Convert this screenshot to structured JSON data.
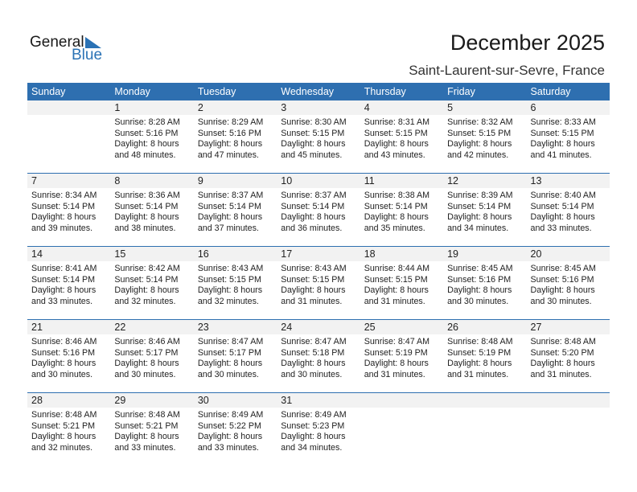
{
  "logo": {
    "text1": "General",
    "text2": "Blue"
  },
  "title": "December 2025",
  "location": "Saint-Laurent-sur-Sevre, France",
  "colors": {
    "header": "#2e6fb0",
    "band": "#f2f2f2",
    "logo_blue": "#2a72b5"
  },
  "weekdays": [
    "Sunday",
    "Monday",
    "Tuesday",
    "Wednesday",
    "Thursday",
    "Friday",
    "Saturday"
  ],
  "weeks": [
    [
      null,
      {
        "d": "1",
        "sr": "Sunrise: 8:28 AM",
        "ss": "Sunset: 5:16 PM",
        "dl": "Daylight: 8 hours",
        "dm": "and 48 minutes."
      },
      {
        "d": "2",
        "sr": "Sunrise: 8:29 AM",
        "ss": "Sunset: 5:16 PM",
        "dl": "Daylight: 8 hours",
        "dm": "and 47 minutes."
      },
      {
        "d": "3",
        "sr": "Sunrise: 8:30 AM",
        "ss": "Sunset: 5:15 PM",
        "dl": "Daylight: 8 hours",
        "dm": "and 45 minutes."
      },
      {
        "d": "4",
        "sr": "Sunrise: 8:31 AM",
        "ss": "Sunset: 5:15 PM",
        "dl": "Daylight: 8 hours",
        "dm": "and 43 minutes."
      },
      {
        "d": "5",
        "sr": "Sunrise: 8:32 AM",
        "ss": "Sunset: 5:15 PM",
        "dl": "Daylight: 8 hours",
        "dm": "and 42 minutes."
      },
      {
        "d": "6",
        "sr": "Sunrise: 8:33 AM",
        "ss": "Sunset: 5:15 PM",
        "dl": "Daylight: 8 hours",
        "dm": "and 41 minutes."
      }
    ],
    [
      {
        "d": "7",
        "sr": "Sunrise: 8:34 AM",
        "ss": "Sunset: 5:14 PM",
        "dl": "Daylight: 8 hours",
        "dm": "and 39 minutes."
      },
      {
        "d": "8",
        "sr": "Sunrise: 8:36 AM",
        "ss": "Sunset: 5:14 PM",
        "dl": "Daylight: 8 hours",
        "dm": "and 38 minutes."
      },
      {
        "d": "9",
        "sr": "Sunrise: 8:37 AM",
        "ss": "Sunset: 5:14 PM",
        "dl": "Daylight: 8 hours",
        "dm": "and 37 minutes."
      },
      {
        "d": "10",
        "sr": "Sunrise: 8:37 AM",
        "ss": "Sunset: 5:14 PM",
        "dl": "Daylight: 8 hours",
        "dm": "and 36 minutes."
      },
      {
        "d": "11",
        "sr": "Sunrise: 8:38 AM",
        "ss": "Sunset: 5:14 PM",
        "dl": "Daylight: 8 hours",
        "dm": "and 35 minutes."
      },
      {
        "d": "12",
        "sr": "Sunrise: 8:39 AM",
        "ss": "Sunset: 5:14 PM",
        "dl": "Daylight: 8 hours",
        "dm": "and 34 minutes."
      },
      {
        "d": "13",
        "sr": "Sunrise: 8:40 AM",
        "ss": "Sunset: 5:14 PM",
        "dl": "Daylight: 8 hours",
        "dm": "and 33 minutes."
      }
    ],
    [
      {
        "d": "14",
        "sr": "Sunrise: 8:41 AM",
        "ss": "Sunset: 5:14 PM",
        "dl": "Daylight: 8 hours",
        "dm": "and 33 minutes."
      },
      {
        "d": "15",
        "sr": "Sunrise: 8:42 AM",
        "ss": "Sunset: 5:14 PM",
        "dl": "Daylight: 8 hours",
        "dm": "and 32 minutes."
      },
      {
        "d": "16",
        "sr": "Sunrise: 8:43 AM",
        "ss": "Sunset: 5:15 PM",
        "dl": "Daylight: 8 hours",
        "dm": "and 32 minutes."
      },
      {
        "d": "17",
        "sr": "Sunrise: 8:43 AM",
        "ss": "Sunset: 5:15 PM",
        "dl": "Daylight: 8 hours",
        "dm": "and 31 minutes."
      },
      {
        "d": "18",
        "sr": "Sunrise: 8:44 AM",
        "ss": "Sunset: 5:15 PM",
        "dl": "Daylight: 8 hours",
        "dm": "and 31 minutes."
      },
      {
        "d": "19",
        "sr": "Sunrise: 8:45 AM",
        "ss": "Sunset: 5:16 PM",
        "dl": "Daylight: 8 hours",
        "dm": "and 30 minutes."
      },
      {
        "d": "20",
        "sr": "Sunrise: 8:45 AM",
        "ss": "Sunset: 5:16 PM",
        "dl": "Daylight: 8 hours",
        "dm": "and 30 minutes."
      }
    ],
    [
      {
        "d": "21",
        "sr": "Sunrise: 8:46 AM",
        "ss": "Sunset: 5:16 PM",
        "dl": "Daylight: 8 hours",
        "dm": "and 30 minutes."
      },
      {
        "d": "22",
        "sr": "Sunrise: 8:46 AM",
        "ss": "Sunset: 5:17 PM",
        "dl": "Daylight: 8 hours",
        "dm": "and 30 minutes."
      },
      {
        "d": "23",
        "sr": "Sunrise: 8:47 AM",
        "ss": "Sunset: 5:17 PM",
        "dl": "Daylight: 8 hours",
        "dm": "and 30 minutes."
      },
      {
        "d": "24",
        "sr": "Sunrise: 8:47 AM",
        "ss": "Sunset: 5:18 PM",
        "dl": "Daylight: 8 hours",
        "dm": "and 30 minutes."
      },
      {
        "d": "25",
        "sr": "Sunrise: 8:47 AM",
        "ss": "Sunset: 5:19 PM",
        "dl": "Daylight: 8 hours",
        "dm": "and 31 minutes."
      },
      {
        "d": "26",
        "sr": "Sunrise: 8:48 AM",
        "ss": "Sunset: 5:19 PM",
        "dl": "Daylight: 8 hours",
        "dm": "and 31 minutes."
      },
      {
        "d": "27",
        "sr": "Sunrise: 8:48 AM",
        "ss": "Sunset: 5:20 PM",
        "dl": "Daylight: 8 hours",
        "dm": "and 31 minutes."
      }
    ],
    [
      {
        "d": "28",
        "sr": "Sunrise: 8:48 AM",
        "ss": "Sunset: 5:21 PM",
        "dl": "Daylight: 8 hours",
        "dm": "and 32 minutes."
      },
      {
        "d": "29",
        "sr": "Sunrise: 8:48 AM",
        "ss": "Sunset: 5:21 PM",
        "dl": "Daylight: 8 hours",
        "dm": "and 33 minutes."
      },
      {
        "d": "30",
        "sr": "Sunrise: 8:49 AM",
        "ss": "Sunset: 5:22 PM",
        "dl": "Daylight: 8 hours",
        "dm": "and 33 minutes."
      },
      {
        "d": "31",
        "sr": "Sunrise: 8:49 AM",
        "ss": "Sunset: 5:23 PM",
        "dl": "Daylight: 8 hours",
        "dm": "and 34 minutes."
      },
      null,
      null,
      null
    ]
  ]
}
